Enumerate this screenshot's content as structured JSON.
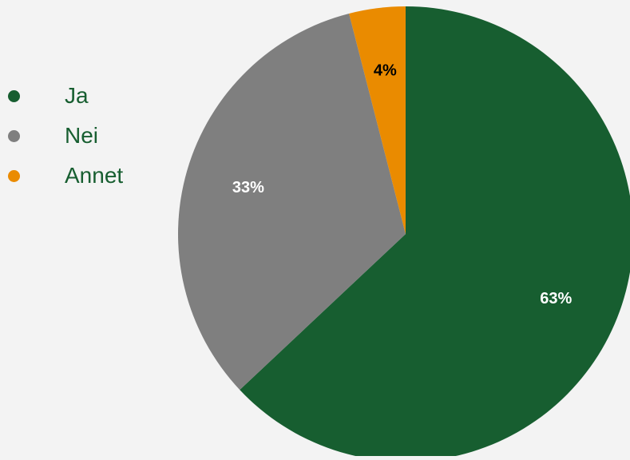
{
  "chart_data": {
    "type": "pie",
    "categories": [
      "Ja",
      "Nei",
      "Annet"
    ],
    "values": [
      63,
      33,
      4
    ],
    "labels": [
      "63%",
      "33%",
      "4%"
    ],
    "colors": [
      "#175e30",
      "#7f7f7f",
      "#ea8b00"
    ],
    "label_colors": [
      "#ffffff",
      "#ffffff",
      "#000000"
    ],
    "legend_placement": "left"
  }
}
